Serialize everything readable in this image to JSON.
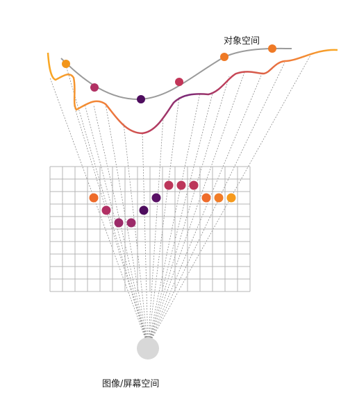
{
  "labels": {
    "object_space": "对象空间",
    "screen_space": "图像/屏幕空间"
  },
  "colors": {
    "grid": "#b4b4b4",
    "ray": "#8a8a8a",
    "camera": "#d8d8d8",
    "object_curve": "#9a9a9a",
    "gradient": [
      "#f9a825",
      "#ef7a3b",
      "#c2405a",
      "#7a2a79"
    ]
  },
  "grid": {
    "columns": 16,
    "rows": 10
  },
  "object_points": [
    {
      "color": "#f2961b"
    },
    {
      "color": "#b13163"
    },
    {
      "color": "#4e0d5e"
    },
    {
      "color": "#c23558"
    },
    {
      "color": "#ef7a26"
    },
    {
      "color": "#ef7a26"
    }
  ],
  "pixel_samples": [
    {
      "col": 3,
      "row": 2,
      "color": "#ee6b2a"
    },
    {
      "col": 4,
      "row": 3,
      "color": "#b13064"
    },
    {
      "col": 5,
      "row": 4,
      "color": "#9c2b69"
    },
    {
      "col": 6,
      "row": 4,
      "color": "#9c2b69"
    },
    {
      "col": 7,
      "row": 3,
      "color": "#4e0d5e"
    },
    {
      "col": 8,
      "row": 2,
      "color": "#5a1166"
    },
    {
      "col": 9,
      "row": 1,
      "color": "#bc365a"
    },
    {
      "col": 10,
      "row": 1,
      "color": "#bc365a"
    },
    {
      "col": 11,
      "row": 1,
      "color": "#bc365a"
    },
    {
      "col": 12,
      "row": 2,
      "color": "#ef6c2b"
    },
    {
      "col": 13,
      "row": 2,
      "color": "#f17c28"
    },
    {
      "col": 14,
      "row": 2,
      "color": "#f69a1c"
    }
  ]
}
